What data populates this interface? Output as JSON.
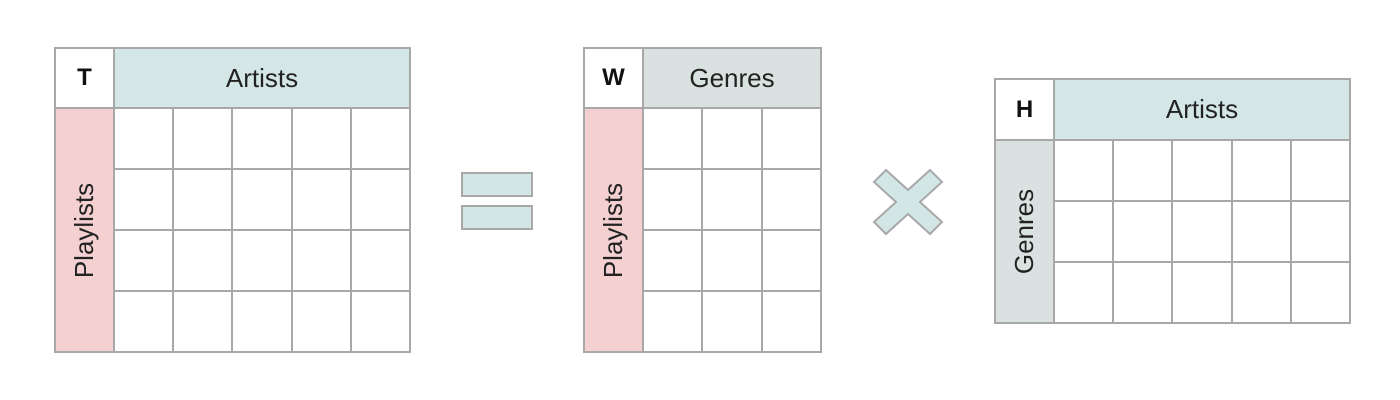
{
  "colors": {
    "artists_header": "#d4e6e6",
    "genres_header": "#d9e1e1",
    "playlists_header": "#f4d0d0",
    "grid_line": "#a8a8a8",
    "operator": "#d3e6e6"
  },
  "matrices": [
    {
      "id": "T",
      "corner": "T",
      "col_label": "Artists",
      "row_label": "Playlists",
      "col_color_key": "artists_header",
      "row_color_key": "playlists_header",
      "rows": 4,
      "cols": 5
    },
    {
      "id": "W",
      "corner": "W",
      "col_label": "Genres",
      "row_label": "Playlists",
      "col_color_key": "genres_header",
      "row_color_key": "playlists_header",
      "rows": 4,
      "cols": 3
    },
    {
      "id": "H",
      "corner": "H",
      "col_label": "Artists",
      "row_label": "Genres",
      "col_color_key": "artists_header",
      "row_color_key": "genres_header",
      "rows": 3,
      "cols": 5
    }
  ],
  "operators": [
    {
      "symbol": "equals-icon"
    },
    {
      "symbol": "times-icon"
    }
  ]
}
